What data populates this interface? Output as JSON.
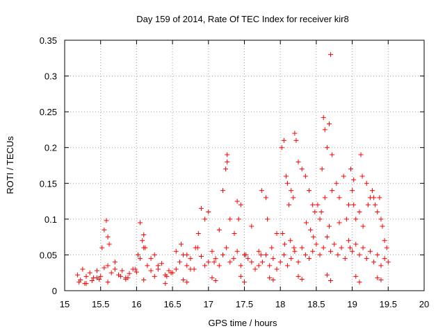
{
  "chart_data": {
    "type": "scatter",
    "title": "Day 159 of 2014, Rate Of TEC Index for receiver kir8",
    "xlabel": "GPS time / hours",
    "ylabel": "ROTI / TECUs",
    "xlim": [
      15,
      20
    ],
    "ylim": [
      0,
      0.35
    ],
    "grid": true,
    "marker": "plus",
    "color": "#ff0000",
    "x_ticks": [
      15,
      15.5,
      16,
      16.5,
      17,
      17.5,
      18,
      18.5,
      19,
      19.5,
      20
    ],
    "x_tick_labels": [
      "15",
      "15.5",
      "16",
      "16.5",
      "17",
      "17.5",
      "18",
      "18.5",
      "19",
      "19.5",
      "20"
    ],
    "y_ticks": [
      0,
      0.05,
      0.1,
      0.15,
      0.2,
      0.25,
      0.3,
      0.35
    ],
    "y_tick_labels": [
      "0",
      "0.05",
      "0.1",
      "0.15",
      "0.2",
      "0.25",
      "0.3",
      "0.35"
    ],
    "series": [
      {
        "name": "ROTI",
        "x": [
          15.18,
          15.22,
          15.25,
          15.3,
          15.35,
          15.4,
          15.45,
          15.5,
          15.55,
          15.6,
          15.65,
          15.7,
          15.75,
          15.8,
          15.85,
          15.9,
          15.95,
          16.0,
          16.05,
          16.1,
          16.15,
          16.2,
          16.25,
          16.3,
          16.35,
          16.4,
          16.45,
          16.5,
          16.55,
          16.6,
          16.65,
          16.7,
          16.75,
          16.8,
          16.85,
          16.9,
          16.95,
          17.0,
          17.05,
          17.1,
          17.15,
          17.2,
          17.25,
          17.3,
          17.35,
          17.4,
          17.45,
          17.5,
          17.55,
          17.6,
          17.65,
          17.7,
          17.75,
          17.8,
          17.85,
          17.9,
          17.95,
          18.0,
          18.05,
          18.1,
          18.15,
          18.2,
          18.25,
          18.3,
          18.35,
          18.4,
          18.45,
          18.5,
          18.55,
          18.6,
          18.65,
          18.7,
          18.75,
          18.8,
          18.85,
          18.9,
          18.95,
          19.0,
          19.05,
          19.1,
          19.15,
          19.2,
          19.25,
          19.3,
          19.35,
          19.4,
          19.45,
          19.5,
          15.2,
          15.28,
          15.38,
          15.48,
          15.52,
          15.55,
          15.58,
          15.6,
          15.62,
          15.7,
          15.78,
          15.88,
          15.98,
          16.02,
          16.05,
          16.08,
          16.1,
          16.12,
          16.2,
          16.3,
          16.42,
          16.48,
          16.55,
          16.62,
          16.7,
          16.75,
          16.82,
          16.86,
          16.9,
          16.95,
          17.0,
          17.08,
          17.15,
          17.2,
          17.24,
          17.26,
          17.3,
          17.36,
          17.4,
          17.42,
          17.45,
          17.52,
          17.6,
          17.7,
          17.74,
          17.8,
          17.82,
          17.88,
          17.95,
          18.02,
          18.05,
          18.08,
          18.1,
          18.12,
          18.15,
          18.18,
          18.2,
          18.22,
          18.25,
          18.3,
          18.35,
          18.4,
          18.45,
          18.48,
          18.52,
          18.55,
          18.58,
          18.6,
          18.62,
          18.65,
          18.68,
          18.7,
          18.72,
          18.78,
          18.82,
          18.88,
          18.92,
          18.95,
          18.98,
          19.0,
          19.02,
          19.05,
          19.1,
          19.12,
          19.15,
          19.2,
          19.22,
          19.25,
          19.28,
          19.3,
          19.32,
          19.35,
          19.38,
          19.4,
          19.42,
          19.45,
          19.48,
          15.3,
          15.6,
          16.1,
          16.4,
          16.7,
          17.1,
          17.5,
          17.9,
          18.3,
          18.7,
          19.1,
          19.4,
          15.45,
          15.85,
          16.25,
          16.65,
          17.05,
          17.45,
          17.85,
          18.25,
          18.65,
          19.05,
          19.35,
          18.36,
          18.42,
          18.57,
          18.62,
          18.68,
          18.72,
          19.14,
          18.14,
          18.19,
          18.03,
          18.06,
          17.26,
          17.73,
          18.46,
          18.82,
          18.97,
          19.02
        ],
        "y": [
          0.022,
          0.015,
          0.03,
          0.02,
          0.025,
          0.018,
          0.028,
          0.02,
          0.032,
          0.035,
          0.025,
          0.04,
          0.022,
          0.028,
          0.018,
          0.024,
          0.03,
          0.026,
          0.045,
          0.06,
          0.035,
          0.028,
          0.05,
          0.03,
          0.038,
          0.022,
          0.028,
          0.025,
          0.03,
          0.04,
          0.05,
          0.035,
          0.045,
          0.03,
          0.06,
          0.048,
          0.035,
          0.04,
          0.055,
          0.045,
          0.035,
          0.05,
          0.06,
          0.04,
          0.045,
          0.055,
          0.035,
          0.05,
          0.045,
          0.04,
          0.03,
          0.055,
          0.04,
          0.05,
          0.035,
          0.045,
          0.03,
          0.04,
          0.05,
          0.035,
          0.045,
          0.055,
          0.04,
          0.06,
          0.05,
          0.045,
          0.055,
          0.065,
          0.05,
          0.06,
          0.075,
          0.055,
          0.065,
          0.05,
          0.06,
          0.045,
          0.07,
          0.055,
          0.065,
          0.05,
          0.06,
          0.045,
          0.055,
          0.04,
          0.05,
          0.035,
          0.045,
          0.04,
          0.012,
          0.01,
          0.014,
          0.016,
          0.06,
          0.085,
          0.098,
          0.075,
          0.065,
          0.03,
          0.02,
          0.018,
          0.03,
          0.05,
          0.095,
          0.07,
          0.078,
          0.06,
          0.045,
          0.035,
          0.02,
          0.025,
          0.055,
          0.065,
          0.05,
          0.03,
          0.06,
          0.08,
          0.115,
          0.1,
          0.11,
          0.04,
          0.085,
          0.14,
          0.17,
          0.19,
          0.1,
          0.08,
          0.125,
          0.1,
          0.12,
          0.05,
          0.09,
          0.035,
          0.14,
          0.13,
          0.1,
          0.06,
          0.08,
          0.2,
          0.21,
          0.16,
          0.15,
          0.12,
          0.14,
          0.13,
          0.22,
          0.21,
          0.18,
          0.17,
          0.16,
          0.14,
          0.12,
          0.11,
          0.12,
          0.1,
          0.17,
          0.242,
          0.225,
          0.2,
          0.233,
          0.33,
          0.19,
          0.15,
          0.13,
          0.16,
          0.1,
          0.12,
          0.17,
          0.14,
          0.12,
          0.1,
          0.11,
          0.19,
          0.09,
          0.15,
          0.12,
          0.13,
          0.14,
          0.13,
          0.12,
          0.11,
          0.13,
          0.1,
          0.09,
          0.07,
          0.06,
          0.01,
          0.012,
          0.015,
          0.01,
          0.012,
          0.014,
          0.012,
          0.015,
          0.016,
          0.014,
          0.012,
          0.015,
          0.018,
          0.016,
          0.02,
          0.015,
          0.018,
          0.02,
          0.018,
          0.02,
          0.022,
          0.02,
          0.018,
          0.095,
          0.085,
          0.11,
          0.13,
          0.09,
          0.14,
          0.16,
          0.07,
          0.06,
          0.08,
          0.065,
          0.18,
          0.05,
          0.075,
          0.095,
          0.06,
          0.155
        ]
      }
    ]
  }
}
